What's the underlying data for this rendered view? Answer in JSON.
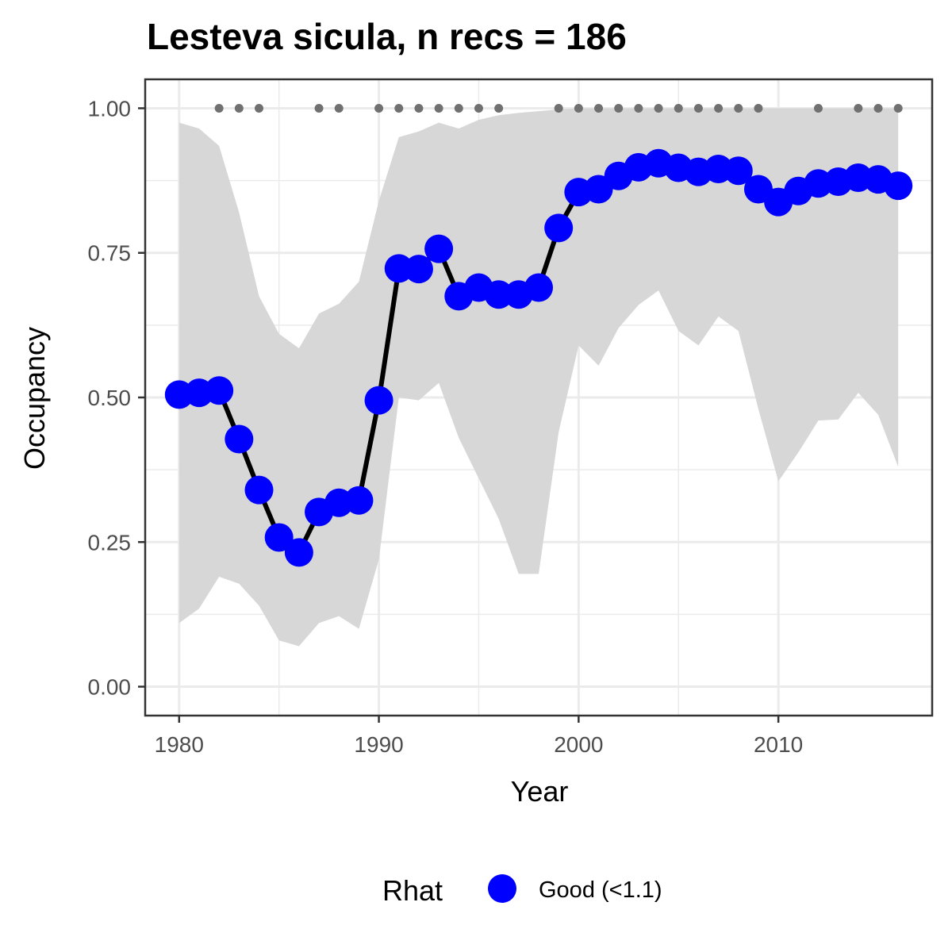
{
  "chart_data": {
    "type": "line",
    "title": "Lesteva sicula, n recs = 186",
    "xlabel": "Year",
    "ylabel": "Occupancy",
    "xlim": [
      1978.3,
      2017.7
    ],
    "ylim": [
      -0.05,
      1.05
    ],
    "x_ticks": [
      1980,
      1990,
      2000,
      2010
    ],
    "x_tick_labels": [
      "1980",
      "1990",
      "2000",
      "2010"
    ],
    "y_ticks": [
      0,
      0.25,
      0.5,
      0.75,
      1
    ],
    "y_tick_labels": [
      "0.00",
      "0.25",
      "0.50",
      "0.75",
      "1.00"
    ],
    "grid": true,
    "x": [
      1980,
      1981,
      1982,
      1983,
      1984,
      1985,
      1986,
      1987,
      1988,
      1989,
      1990,
      1991,
      1992,
      1993,
      1994,
      1995,
      1996,
      1997,
      1998,
      1999,
      2000,
      2001,
      2002,
      2003,
      2004,
      2005,
      2006,
      2007,
      2008,
      2009,
      2010,
      2011,
      2012,
      2013,
      2014,
      2015,
      2016
    ],
    "series": [
      {
        "values": [
          0.505,
          0.508,
          0.512,
          0.428,
          0.34,
          0.258,
          0.232,
          0.302,
          0.318,
          0.322,
          0.495,
          0.723,
          0.722,
          0.757,
          0.675,
          0.69,
          0.678,
          0.678,
          0.69,
          0.793,
          0.855,
          0.86,
          0.883,
          0.898,
          0.905,
          0.897,
          0.89,
          0.895,
          0.892,
          0.86,
          0.838,
          0.857,
          0.87,
          0.873,
          0.88,
          0.877,
          0.866
        ],
        "lower": [
          0.11,
          0.135,
          0.19,
          0.178,
          0.14,
          0.08,
          0.07,
          0.11,
          0.122,
          0.1,
          0.22,
          0.5,
          0.495,
          0.525,
          0.43,
          0.36,
          0.29,
          0.195,
          0.195,
          0.44,
          0.59,
          0.555,
          0.62,
          0.66,
          0.685,
          0.615,
          0.59,
          0.64,
          0.615,
          0.48,
          0.355,
          0.405,
          0.46,
          0.462,
          0.508,
          0.47,
          0.38
        ],
        "upper": [
          0.975,
          0.965,
          0.935,
          0.82,
          0.675,
          0.61,
          0.585,
          0.645,
          0.662,
          0.7,
          0.84,
          0.95,
          0.96,
          0.975,
          0.965,
          0.98,
          0.988,
          0.992,
          0.995,
          0.998,
          1.0,
          1.0,
          1.0,
          1.0,
          1.0,
          1.0,
          1.0,
          1.0,
          1.0,
          1.0,
          1.0,
          1.0,
          1.0,
          1.0,
          1.0,
          1.0,
          1.0
        ]
      }
    ],
    "record_years": [
      1982,
      1983,
      1984,
      1987,
      1988,
      1990,
      1991,
      1992,
      1993,
      1994,
      1995,
      1996,
      1999,
      2000,
      2001,
      2002,
      2003,
      2004,
      2005,
      2006,
      2007,
      2008,
      2009,
      2012,
      2014,
      2015,
      2016
    ],
    "record_marker_y": 1.0,
    "legend": {
      "title": "Rhat",
      "entries": [
        "Good (<1.1)"
      ],
      "position": "bottom"
    },
    "colors": {
      "points": "#0000ff",
      "line": "#000000",
      "ribbon": "#d6d6d6",
      "record_dots": "#707070",
      "grid": "#ebebeb"
    }
  }
}
